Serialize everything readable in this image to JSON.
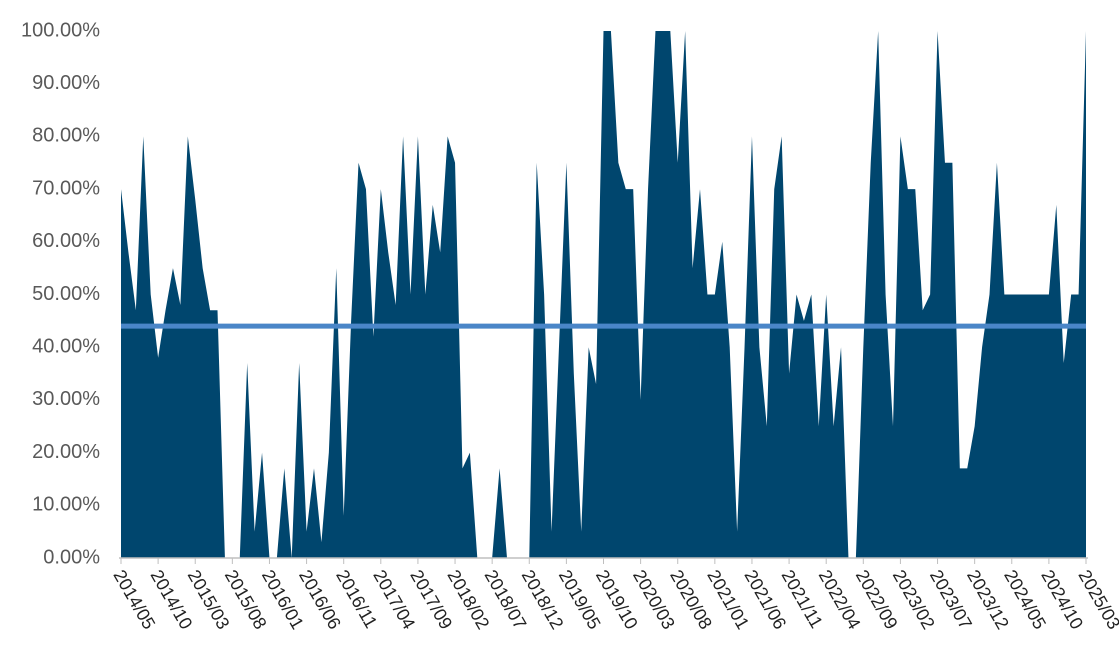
{
  "chart_data": {
    "type": "area",
    "categories": [
      "2014/05",
      null,
      null,
      null,
      null,
      "2014/10",
      null,
      null,
      null,
      null,
      "2015/03",
      null,
      null,
      null,
      null,
      "2015/08",
      null,
      null,
      null,
      null,
      "2016/01",
      null,
      null,
      null,
      null,
      "2016/06",
      null,
      null,
      null,
      null,
      "2016/11",
      null,
      null,
      null,
      null,
      "2017/04",
      null,
      null,
      null,
      null,
      "2017/09",
      null,
      null,
      null,
      null,
      "2018/02",
      null,
      null,
      null,
      null,
      "2018/07",
      null,
      null,
      null,
      null,
      "2018/12",
      null,
      null,
      null,
      null,
      "2019/05",
      null,
      null,
      null,
      null,
      "2019/10",
      null,
      null,
      null,
      null,
      "2020/03",
      null,
      null,
      null,
      null,
      "2020/08",
      null,
      null,
      null,
      null,
      "2021/01",
      null,
      null,
      null,
      null,
      "2021/06",
      null,
      null,
      null,
      null,
      "2021/11",
      null,
      null,
      null,
      null,
      "2022/04",
      null,
      null,
      null,
      null,
      "2022/09",
      null,
      null,
      null,
      null,
      "2023/02",
      null,
      null,
      null,
      null,
      "2023/07",
      null,
      null,
      null,
      null,
      "2023/12",
      null,
      null,
      null,
      null,
      "2024/05",
      null,
      null,
      null,
      null,
      "2024/10",
      null,
      null,
      null,
      null,
      "2025/03"
    ],
    "values": [
      70,
      58,
      47,
      80,
      50,
      38,
      47,
      55,
      48,
      80,
      68,
      55,
      47,
      47,
      0,
      0,
      0,
      37,
      5,
      20,
      0,
      0,
      17,
      0,
      37,
      5,
      17,
      3,
      20,
      55,
      8,
      45,
      75,
      70,
      42,
      70,
      58,
      48,
      80,
      50,
      80,
      50,
      67,
      58,
      80,
      75,
      17,
      20,
      0,
      0,
      0,
      17,
      0,
      0,
      0,
      0,
      75,
      50,
      5,
      40,
      75,
      35,
      5,
      40,
      33,
      100,
      100,
      75,
      70,
      70,
      30,
      70,
      100,
      100,
      100,
      75,
      100,
      55,
      70,
      50,
      50,
      60,
      40,
      5,
      40,
      80,
      40,
      25,
      70,
      80,
      35,
      50,
      45,
      50,
      25,
      50,
      25,
      40,
      0,
      0,
      40,
      75,
      100,
      50,
      25,
      80,
      70,
      70,
      47,
      50,
      100,
      75,
      75,
      17,
      17,
      25,
      40,
      50,
      75,
      50,
      50,
      50,
      50,
      50,
      50,
      50,
      67,
      37,
      50,
      50,
      100
    ],
    "color": "#00466e",
    "reference_line": {
      "value": 44,
      "color": "#4a86c8"
    },
    "ylim": [
      0,
      100
    ],
    "yticks": [
      {
        "value": 0,
        "label": "0.00%"
      },
      {
        "value": 10,
        "label": "10.00%"
      },
      {
        "value": 20,
        "label": "20.00%"
      },
      {
        "value": 30,
        "label": "30.00%"
      },
      {
        "value": 40,
        "label": "40.00%"
      },
      {
        "value": 50,
        "label": "50.00%"
      },
      {
        "value": 60,
        "label": "60.00%"
      },
      {
        "value": 70,
        "label": "70.00%"
      },
      {
        "value": 80,
        "label": "80.00%"
      },
      {
        "value": 90,
        "label": "90.00%"
      },
      {
        "value": 100,
        "label": "100.00%"
      }
    ]
  }
}
